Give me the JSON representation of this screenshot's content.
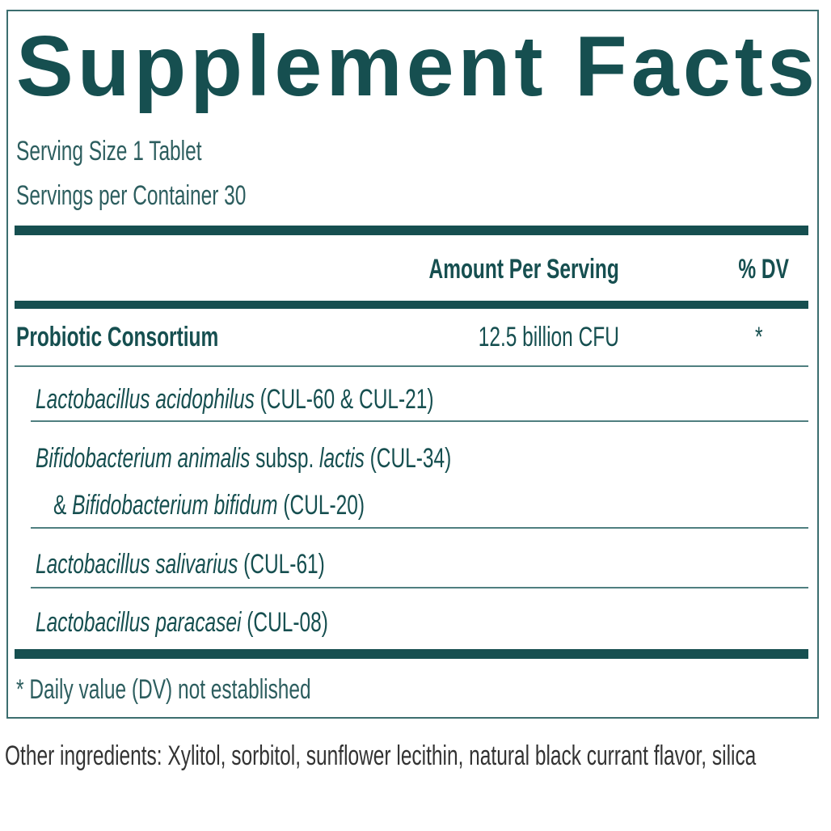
{
  "title": "Supplement Facts",
  "serving": [
    "Serving Size 1 Tablet",
    "Servings per Container 30"
  ],
  "table": {
    "header": [
      "Amount Per Serving",
      "% DV"
    ],
    "main": {
      "name": "Probiotic Consortium",
      "amount": "12.5 billion CFU",
      "dv": "*"
    },
    "ingredients": [
      {
        "lines": [
          [
            {
              "text": "Lactobacillus acidophilus",
              "italic": true
            },
            {
              "text": " (CUL-60 & CUL-21)",
              "italic": false
            }
          ]
        ]
      },
      {
        "lines": [
          [
            {
              "text": "Bifidobacterium animalis",
              "italic": true
            },
            {
              "text": " subsp. ",
              "italic": false
            },
            {
              "text": "lactis",
              "italic": true
            },
            {
              "text": " (CUL-34)",
              "italic": false
            }
          ],
          [
            {
              "text": "& ",
              "italic": false
            },
            {
              "text": "Bifidobacterium bifidum",
              "italic": true
            },
            {
              "text": " (CUL-20)",
              "italic": false
            }
          ]
        ]
      },
      {
        "lines": [
          [
            {
              "text": "Lactobacillus salivarius",
              "italic": true
            },
            {
              "text": " (CUL-61)",
              "italic": false
            }
          ]
        ]
      },
      {
        "lines": [
          [
            {
              "text": "Lactobacillus paracasei",
              "italic": true
            },
            {
              "text": " (CUL-08)",
              "italic": false
            }
          ]
        ]
      }
    ]
  },
  "footnote": "* Daily value (DV) not established",
  "other_ingredients": "Other ingredients: Xylitol, sorbitol, sunflower lecithin, natural black currant flavor, silica"
}
